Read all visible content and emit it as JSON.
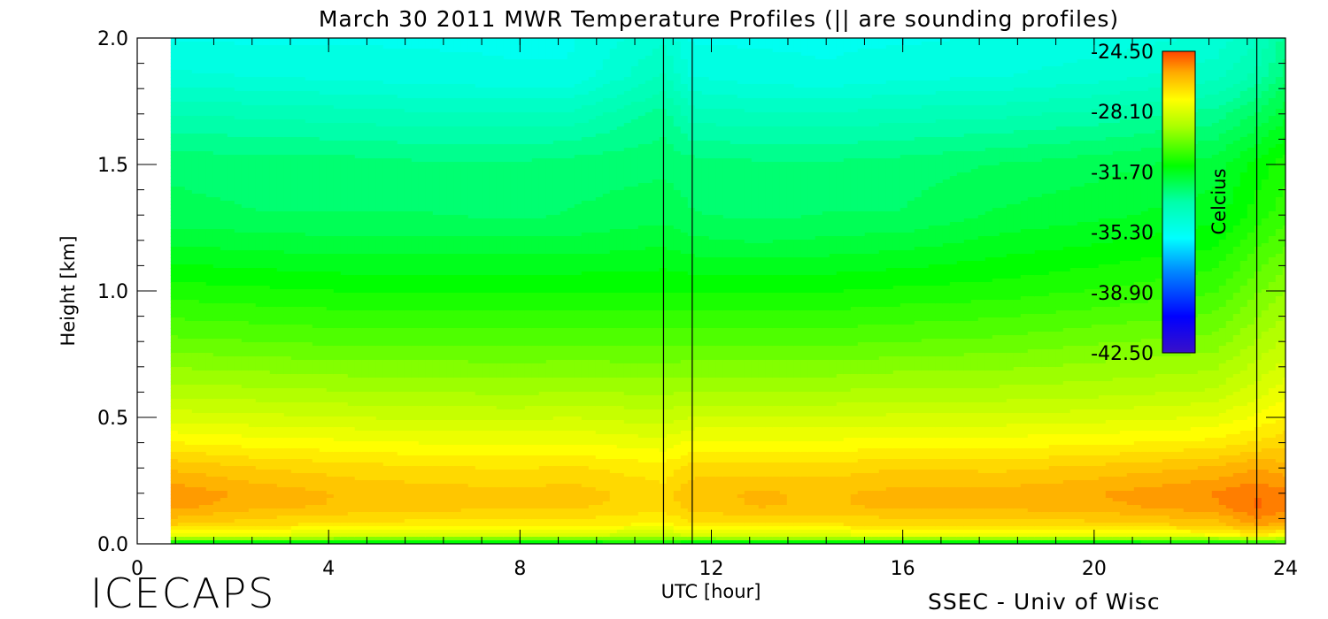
{
  "chart_data": {
    "type": "heatmap",
    "title": "March 30 2011 MWR Temperature Profiles (|| are sounding profiles)",
    "xlabel": "UTC [hour]",
    "ylabel": "Height [km]",
    "xlim": [
      0,
      24
    ],
    "ylim": [
      0,
      2
    ],
    "x_ticks": [
      "0",
      "4",
      "8",
      "12",
      "16",
      "20",
      "24"
    ],
    "y_ticks": [
      "0.0",
      "0.5",
      "1.0",
      "1.5",
      "2.0"
    ],
    "x_tick_values": [
      0,
      4,
      8,
      12,
      16,
      20,
      24
    ],
    "y_tick_values": [
      0,
      0.5,
      1.0,
      1.5,
      2.0
    ],
    "data_x_range": [
      0.7,
      24
    ],
    "sounding_times": [
      11.0,
      11.6,
      23.4
    ],
    "colorbar": {
      "label": "Celcius",
      "range": [
        -42.5,
        -24.5
      ],
      "ticks": [
        "-24.50",
        "-28.10",
        "-31.70",
        "-35.30",
        "-38.90",
        "-42.50"
      ],
      "tick_values": [
        -24.5,
        -28.1,
        -31.7,
        -35.3,
        -38.9,
        -42.5
      ]
    },
    "profile_heights_km": [
      0.0,
      0.03,
      0.08,
      0.15,
      0.2,
      0.3,
      0.4,
      0.5,
      0.6,
      0.8,
      1.0,
      1.2,
      1.3,
      1.5,
      1.7,
      1.85,
      2.0
    ],
    "profile_times_utc": [
      0.7,
      2.5,
      4.5,
      6.0,
      8.0,
      9.0,
      11.0,
      11.6,
      13.0,
      14.5,
      16.0,
      18.0,
      20.0,
      22.5,
      23.4,
      24.0
    ],
    "temperature_profiles_c": [
      [
        -32.0,
        -27.6,
        -26.2,
        -25.4,
        -25.3,
        -26.0,
        -27.0,
        -27.9,
        -28.6,
        -29.8,
        -30.8,
        -31.8,
        -32.3,
        -32.5,
        -33.5,
        -34.5,
        -35.0
      ],
      [
        -32.0,
        -27.8,
        -26.5,
        -25.8,
        -25.7,
        -26.3,
        -27.2,
        -28.0,
        -28.7,
        -29.9,
        -30.9,
        -31.9,
        -32.4,
        -32.6,
        -33.6,
        -34.6,
        -35.0
      ],
      [
        -32.0,
        -28.0,
        -26.7,
        -26.0,
        -26.0,
        -26.5,
        -27.3,
        -28.1,
        -28.8,
        -30.0,
        -31.0,
        -32.0,
        -32.4,
        -32.6,
        -33.7,
        -34.7,
        -35.0
      ],
      [
        -32.0,
        -28.0,
        -26.8,
        -26.1,
        -26.1,
        -26.6,
        -27.4,
        -28.2,
        -28.8,
        -30.0,
        -31.0,
        -32.0,
        -32.4,
        -32.7,
        -33.8,
        -34.8,
        -35.0
      ],
      [
        -32.0,
        -28.0,
        -26.8,
        -26.2,
        -26.2,
        -26.7,
        -27.4,
        -28.2,
        -28.9,
        -30.0,
        -31.0,
        -32.0,
        -32.5,
        -32.7,
        -33.8,
        -34.9,
        -35.0
      ],
      [
        -32.0,
        -28.0,
        -26.8,
        -26.2,
        -26.1,
        -26.6,
        -27.4,
        -28.1,
        -28.8,
        -30.0,
        -31.0,
        -32.0,
        -32.4,
        -32.6,
        -33.8,
        -34.9,
        -35.0
      ],
      [
        -31.5,
        -28.5,
        -27.0,
        -26.5,
        -26.5,
        -26.9,
        -27.6,
        -28.3,
        -28.9,
        -30.0,
        -31.0,
        -31.8,
        -32.2,
        -32.5,
        -33.0,
        -33.8,
        -34.3
      ],
      [
        -32.0,
        -28.0,
        -26.7,
        -26.1,
        -26.0,
        -26.5,
        -27.3,
        -28.1,
        -28.8,
        -30.0,
        -31.0,
        -32.0,
        -32.4,
        -32.6,
        -33.7,
        -34.6,
        -35.0
      ],
      [
        -32.0,
        -27.9,
        -26.6,
        -25.9,
        -25.9,
        -26.5,
        -27.3,
        -28.1,
        -28.8,
        -30.0,
        -31.0,
        -32.1,
        -32.5,
        -32.7,
        -33.8,
        -34.8,
        -35.0
      ],
      [
        -32.0,
        -27.9,
        -26.6,
        -26.0,
        -26.0,
        -26.5,
        -27.3,
        -28.1,
        -28.8,
        -30.0,
        -31.0,
        -32.0,
        -32.4,
        -32.7,
        -33.8,
        -34.9,
        -35.0
      ],
      [
        -32.0,
        -27.8,
        -26.5,
        -25.8,
        -25.8,
        -26.3,
        -27.2,
        -28.0,
        -28.7,
        -29.9,
        -30.9,
        -31.9,
        -32.4,
        -32.6,
        -33.7,
        -34.7,
        -35.0
      ],
      [
        -32.0,
        -27.8,
        -26.5,
        -25.8,
        -25.8,
        -26.4,
        -27.2,
        -28.0,
        -28.7,
        -29.8,
        -30.8,
        -31.6,
        -32.0,
        -32.4,
        -33.6,
        -34.6,
        -34.9
      ],
      [
        -32.0,
        -27.7,
        -26.4,
        -25.7,
        -25.6,
        -26.2,
        -27.1,
        -27.9,
        -28.6,
        -29.6,
        -30.6,
        -31.4,
        -31.8,
        -32.2,
        -33.4,
        -34.4,
        -34.8
      ],
      [
        -32.0,
        -27.5,
        -26.1,
        -25.3,
        -25.2,
        -25.9,
        -26.9,
        -27.7,
        -28.4,
        -29.4,
        -30.3,
        -31.1,
        -31.5,
        -31.9,
        -33.0,
        -34.0,
        -34.5
      ],
      [
        -31.5,
        -27.0,
        -25.4,
        -24.8,
        -24.9,
        -25.6,
        -26.6,
        -27.3,
        -27.9,
        -28.8,
        -29.6,
        -30.4,
        -30.8,
        -31.2,
        -32.4,
        -33.4,
        -33.9
      ],
      [
        -31.0,
        -27.5,
        -25.6,
        -25.0,
        -25.1,
        -25.8,
        -26.4,
        -27.0,
        -27.5,
        -28.4,
        -29.2,
        -30.0,
        -30.4,
        -30.8,
        -31.8,
        -32.6,
        -33.0
      ]
    ]
  },
  "branding": {
    "project": "ICECAPS",
    "credit": "SSEC - Univ of Wisc"
  }
}
